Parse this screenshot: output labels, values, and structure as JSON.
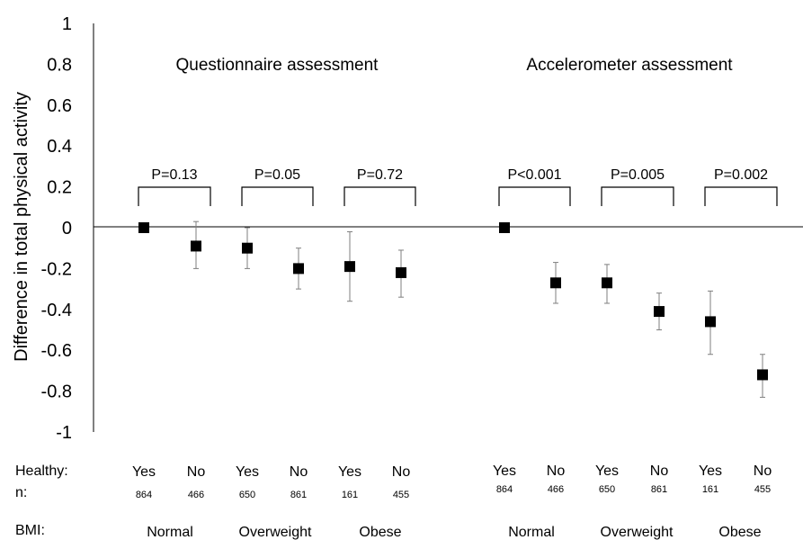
{
  "chart_data": {
    "type": "scatter",
    "ylabel": "Difference in total physical activity",
    "ylim": [
      -1,
      1
    ],
    "yticks": [
      "1",
      "0.8",
      "0.6",
      "0.4",
      "0.2",
      "0",
      "-0.2",
      "-0.4",
      "-0.6",
      "-0.8",
      "-1"
    ],
    "row_labels": {
      "healthy": "Healthy:",
      "n": "n:",
      "bmi": "BMI:"
    },
    "panels": [
      {
        "title": "Questionnaire assessment",
        "groups": [
          {
            "bmi": "Normal",
            "p": "P=0.13",
            "points": [
              {
                "healthy": "Yes",
                "n": "864",
                "y": 0.0,
                "low": 0.0,
                "high": 0.0
              },
              {
                "healthy": "No",
                "n": "466",
                "y": -0.09,
                "low": -0.2,
                "high": 0.03
              }
            ]
          },
          {
            "bmi": "Overweight",
            "p": "P=0.05",
            "points": [
              {
                "healthy": "Yes",
                "n": "650",
                "y": -0.1,
                "low": -0.2,
                "high": 0.0
              },
              {
                "healthy": "No",
                "n": "861",
                "y": -0.2,
                "low": -0.3,
                "high": -0.1
              }
            ]
          },
          {
            "bmi": "Obese",
            "p": "P=0.72",
            "points": [
              {
                "healthy": "Yes",
                "n": "161",
                "y": -0.19,
                "low": -0.36,
                "high": -0.02
              },
              {
                "healthy": "No",
                "n": "455",
                "y": -0.22,
                "low": -0.34,
                "high": -0.11
              }
            ]
          }
        ]
      },
      {
        "title": "Accelerometer assessment",
        "groups": [
          {
            "bmi": "Normal",
            "p": "P<0.001",
            "points": [
              {
                "healthy": "Yes",
                "n": "864",
                "y": 0.0,
                "low": 0.0,
                "high": 0.0
              },
              {
                "healthy": "No",
                "n": "466",
                "y": -0.27,
                "low": -0.37,
                "high": -0.17
              }
            ]
          },
          {
            "bmi": "Overweight",
            "p": "P=0.005",
            "points": [
              {
                "healthy": "Yes",
                "n": "650",
                "y": -0.27,
                "low": -0.37,
                "high": -0.18
              },
              {
                "healthy": "No",
                "n": "861",
                "y": -0.41,
                "low": -0.5,
                "high": -0.32
              }
            ]
          },
          {
            "bmi": "Obese",
            "p": "P=0.002",
            "points": [
              {
                "healthy": "Yes",
                "n": "161",
                "y": -0.46,
                "low": -0.62,
                "high": -0.31
              },
              {
                "healthy": "No",
                "n": "455",
                "y": -0.72,
                "low": -0.83,
                "high": -0.62
              }
            ]
          }
        ]
      }
    ]
  }
}
